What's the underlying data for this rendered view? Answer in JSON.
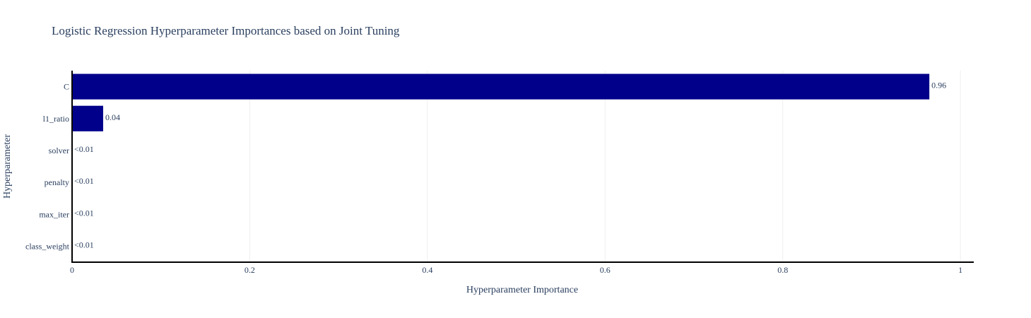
{
  "chart_data": {
    "type": "bar",
    "orientation": "horizontal",
    "title": "Logistic Regression Hyperparameter Importances based on Joint Tuning",
    "xlabel": "Hyperparameter Importance",
    "ylabel": "Hyperparameter",
    "categories": [
      "C",
      "l1_ratio",
      "solver",
      "penalty",
      "max_iter",
      "class_weight"
    ],
    "values": [
      0.965,
      0.035,
      0.0,
      0.0,
      0.0,
      0.0
    ],
    "data_labels": [
      "0.96",
      "0.04",
      "<0.01",
      "<0.01",
      "<0.01",
      "<0.01"
    ],
    "xlim": [
      0,
      1.015
    ],
    "xticks": [
      0,
      0.2,
      0.4,
      0.6,
      0.8,
      1
    ],
    "xtick_labels": [
      "0",
      "0.2",
      "0.4",
      "0.6",
      "0.8",
      "1"
    ],
    "grid": "vertical",
    "bar_color": "#00008b",
    "grid_color": "#eeeeee",
    "axis_color": "#000000",
    "text_color": "#2a3f5f"
  }
}
